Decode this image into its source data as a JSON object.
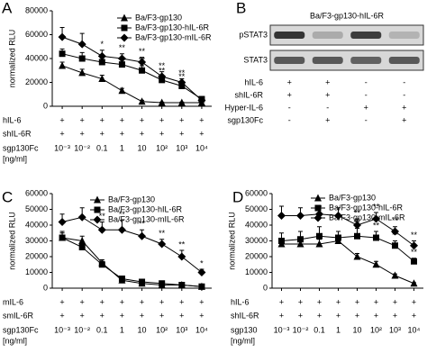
{
  "chart_data": [
    {
      "type": "line",
      "panel": "A",
      "y_label": "normalized RLU",
      "categories": [
        "10⁻³",
        "10⁻²",
        "0.1",
        "1",
        "10",
        "10²",
        "10³",
        "10⁴"
      ],
      "x_label": [
        "sgp130Fc",
        "[ng/ml]"
      ],
      "rows": [
        {
          "label": "hIL-6",
          "values": [
            "+",
            "+",
            "+",
            "+",
            "+",
            "+",
            "+",
            "+"
          ]
        },
        {
          "label": "shIL-6R",
          "values": [
            "+",
            "+",
            "+",
            "+",
            "+",
            "+",
            "+",
            "+"
          ]
        }
      ],
      "ylim": [
        0,
        80000
      ],
      "yticks": [
        0,
        20000,
        40000,
        60000,
        80000
      ],
      "series": [
        {
          "name": "Ba/F3-gp130",
          "color": "#000000",
          "marker": "triangle",
          "values": [
            34000,
            28000,
            23000,
            13000,
            4000,
            3000,
            3000,
            3000
          ],
          "errors": [
            3000,
            3000,
            3000,
            2000,
            1000,
            500,
            500,
            500
          ]
        },
        {
          "name": "Ba/F3-gp130-hIL-6R",
          "color": "#000000",
          "marker": "square",
          "values": [
            44000,
            40000,
            37000,
            35000,
            30000,
            22000,
            17000,
            6000
          ],
          "errors": [
            4000,
            5000,
            4000,
            4000,
            4000,
            3000,
            3000,
            2000
          ],
          "significance": [
            null,
            null,
            null,
            null,
            "**",
            "**",
            "**",
            null
          ]
        },
        {
          "name": "Ba/F3-gp130-mIL-6R",
          "color": "#000000",
          "marker": "diamond",
          "values": [
            58000,
            52000,
            42000,
            40000,
            37000,
            25000,
            20000,
            5000
          ],
          "errors": [
            8000,
            9000,
            5000,
            4000,
            4000,
            4000,
            3000,
            1000
          ],
          "significance": [
            null,
            null,
            "*",
            "**",
            "**",
            "**",
            "**",
            null
          ]
        }
      ]
    },
    {
      "type": "blot",
      "panel": "B",
      "title": "Ba/F3-gp130-hIL-6R",
      "bands": [
        "pSTAT3",
        "STAT3"
      ],
      "rows": [
        {
          "label": "hIL-6",
          "values": [
            "+",
            "+",
            "-",
            "-"
          ]
        },
        {
          "label": "shIL-6R",
          "values": [
            "+",
            "+",
            "-",
            "-"
          ]
        },
        {
          "label": "Hyper-IL-6",
          "values": [
            "-",
            "-",
            "+",
            "+"
          ]
        },
        {
          "label": "sgp130Fc",
          "values": [
            "-",
            "+",
            "-",
            "+"
          ]
        }
      ]
    },
    {
      "type": "line",
      "panel": "C",
      "y_label": "normalized RLU",
      "categories": [
        "10⁻³",
        "10⁻²",
        "0.1",
        "1",
        "10",
        "10²",
        "10³",
        "10⁴"
      ],
      "x_label": [
        "sgp130Fc",
        "[ng/ml]"
      ],
      "rows": [
        {
          "label": "mIL-6",
          "values": [
            "+",
            "+",
            "+",
            "+",
            "+",
            "+",
            "+",
            "+"
          ]
        },
        {
          "label": "smIL-6R",
          "values": [
            "+",
            "+",
            "+",
            "+",
            "+",
            "+",
            "+",
            "+"
          ]
        }
      ],
      "ylim": [
        0,
        60000
      ],
      "yticks": [
        0,
        10000,
        20000,
        30000,
        40000,
        50000,
        60000
      ],
      "series": [
        {
          "name": "Ba/F3-gp130",
          "color": "#000000",
          "marker": "triangle",
          "values": [
            32000,
            30000,
            16000,
            5000,
            3000,
            2000,
            2000,
            1000
          ],
          "errors": [
            3000,
            3000,
            2000,
            1000,
            500,
            500,
            500,
            500
          ]
        },
        {
          "name": "Ba/F3-gp130-hIL-6R",
          "color": "#000000",
          "marker": "square",
          "values": [
            32000,
            26000,
            15000,
            6000,
            4000,
            3000,
            2000,
            1000
          ],
          "errors": [
            4000,
            3000,
            2000,
            1000,
            500,
            500,
            500,
            500
          ]
        },
        {
          "name": "Ba/F3-gp130-mIL-6R",
          "color": "#000000",
          "marker": "diamond",
          "values": [
            42000,
            45000,
            37000,
            37000,
            33000,
            28000,
            20000,
            10000
          ],
          "errors": [
            5000,
            6000,
            5000,
            6000,
            4000,
            3000,
            4000,
            2000
          ],
          "significance": [
            null,
            null,
            "**",
            "**",
            "**",
            "**",
            "**",
            "*"
          ]
        }
      ]
    },
    {
      "type": "line",
      "panel": "D",
      "y_label": "normalized RLU",
      "categories": [
        "10⁻³",
        "10⁻²",
        "0.1",
        "1",
        "10",
        "10²",
        "10³",
        "10⁴"
      ],
      "x_label": [
        "sgp130",
        "[ng/ml]"
      ],
      "rows": [
        {
          "label": "hIL-6",
          "values": [
            "+",
            "+",
            "+",
            "+",
            "+",
            "+",
            "+",
            "+"
          ]
        },
        {
          "label": "shIL-6R",
          "values": [
            "+",
            "+",
            "+",
            "+",
            "+",
            "+",
            "+",
            "+"
          ]
        }
      ],
      "ylim": [
        0,
        60000
      ],
      "yticks": [
        0,
        10000,
        20000,
        30000,
        40000,
        50000,
        60000
      ],
      "series": [
        {
          "name": "Ba/F3-gp130",
          "color": "#000000",
          "marker": "triangle",
          "values": [
            28000,
            28000,
            28000,
            30000,
            20000,
            15000,
            8000,
            3000
          ],
          "errors": [
            3000,
            3000,
            3000,
            3000,
            2000,
            2000,
            1000,
            500
          ]
        },
        {
          "name": "Ba/F3-gp130-hIL-6R",
          "color": "#000000",
          "marker": "square",
          "values": [
            30000,
            31000,
            33000,
            32000,
            33000,
            32000,
            27000,
            17000
          ],
          "errors": [
            5000,
            5000,
            6000,
            4000,
            5000,
            4000,
            3000,
            2000
          ],
          "significance": [
            null,
            null,
            null,
            null,
            "**",
            "**",
            "**",
            "**"
          ]
        },
        {
          "name": "Ba/F3-gp130-mIL-6R",
          "color": "#000000",
          "marker": "diamond",
          "values": [
            46000,
            46000,
            47000,
            46000,
            40000,
            44000,
            36000,
            27000
          ],
          "errors": [
            6000,
            5000,
            5000,
            5000,
            4000,
            4000,
            3000,
            3000
          ],
          "significance": [
            null,
            null,
            null,
            null,
            "**",
            "**",
            "**",
            "**"
          ]
        }
      ]
    }
  ]
}
